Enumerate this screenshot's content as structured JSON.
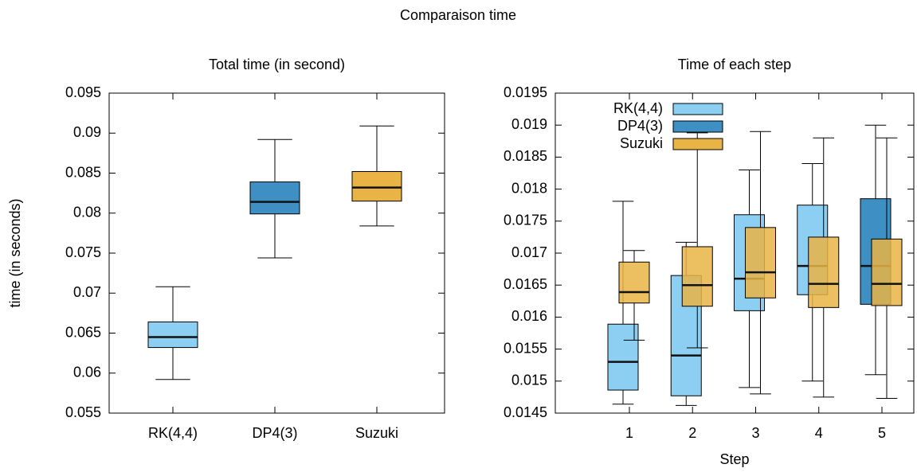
{
  "title": "Comparaison time",
  "chart_data": [
    {
      "type": "box",
      "title": "Total time (in second)",
      "y_label": "time (in seconds)",
      "categories": [
        "RK(4,4)",
        "DP4(3)",
        "Suzuki"
      ],
      "colors": [
        "#8dcff2",
        "#3d8fc4",
        "#e9b445"
      ],
      "low": [
        0.0592,
        0.0744,
        0.0784
      ],
      "q1": [
        0.0632,
        0.0799,
        0.0815
      ],
      "median": [
        0.0645,
        0.0814,
        0.0832
      ],
      "q3": [
        0.0664,
        0.0839,
        0.0852
      ],
      "high": [
        0.0708,
        0.0892,
        0.0909
      ],
      "ylim": [
        0.055,
        0.095
      ],
      "yticks": [
        0.055,
        0.06,
        0.065,
        0.07,
        0.075,
        0.08,
        0.085,
        0.09,
        0.095
      ]
    },
    {
      "type": "grouped-box",
      "title": "Time of each step",
      "x_label": "Step",
      "categories": [
        "1",
        "2",
        "3",
        "4",
        "5"
      ],
      "legend": "top-left",
      "series": [
        {
          "name": "RK(4,4)",
          "color": "#8dcff2",
          "low": [
            0.01464,
            0.01462,
            0.0149,
            0.015,
            null
          ],
          "q1": [
            0.01486,
            0.01477,
            0.0161,
            0.01635,
            null
          ],
          "median": [
            0.0153,
            0.0154,
            0.0166,
            0.0168,
            null
          ],
          "q3": [
            0.01589,
            0.01665,
            0.0176,
            0.01775,
            null
          ],
          "high": [
            0.01781,
            0.01717,
            0.0183,
            0.0184,
            null
          ]
        },
        {
          "name": "DP4(3)",
          "color": "#3d8fc4",
          "low": [
            null,
            null,
            null,
            null,
            0.0151
          ],
          "q1": [
            null,
            null,
            null,
            null,
            0.0162
          ],
          "median": [
            null,
            null,
            null,
            null,
            0.0168
          ],
          "q3": [
            null,
            null,
            null,
            null,
            0.01785
          ],
          "high": [
            null,
            null,
            null,
            null,
            0.019
          ]
        },
        {
          "name": "Suzuki",
          "color": "#e9b445",
          "low": [
            0.01564,
            0.01552,
            0.0148,
            0.01475,
            0.01473
          ],
          "q1": [
            0.01622,
            0.01617,
            0.0163,
            0.01615,
            0.01618
          ],
          "median": [
            0.01639,
            0.0165,
            0.0167,
            0.01652,
            0.01652
          ],
          "q3": [
            0.01686,
            0.0171,
            0.0174,
            0.01725,
            0.01722
          ],
          "high": [
            0.01704,
            0.01888,
            0.0189,
            0.0188,
            0.0188
          ]
        }
      ],
      "ylim": [
        0.0145,
        0.0195
      ],
      "yticks": [
        0.0145,
        0.015,
        0.0155,
        0.016,
        0.0165,
        0.017,
        0.0175,
        0.018,
        0.0185,
        0.019,
        0.0195
      ]
    }
  ]
}
